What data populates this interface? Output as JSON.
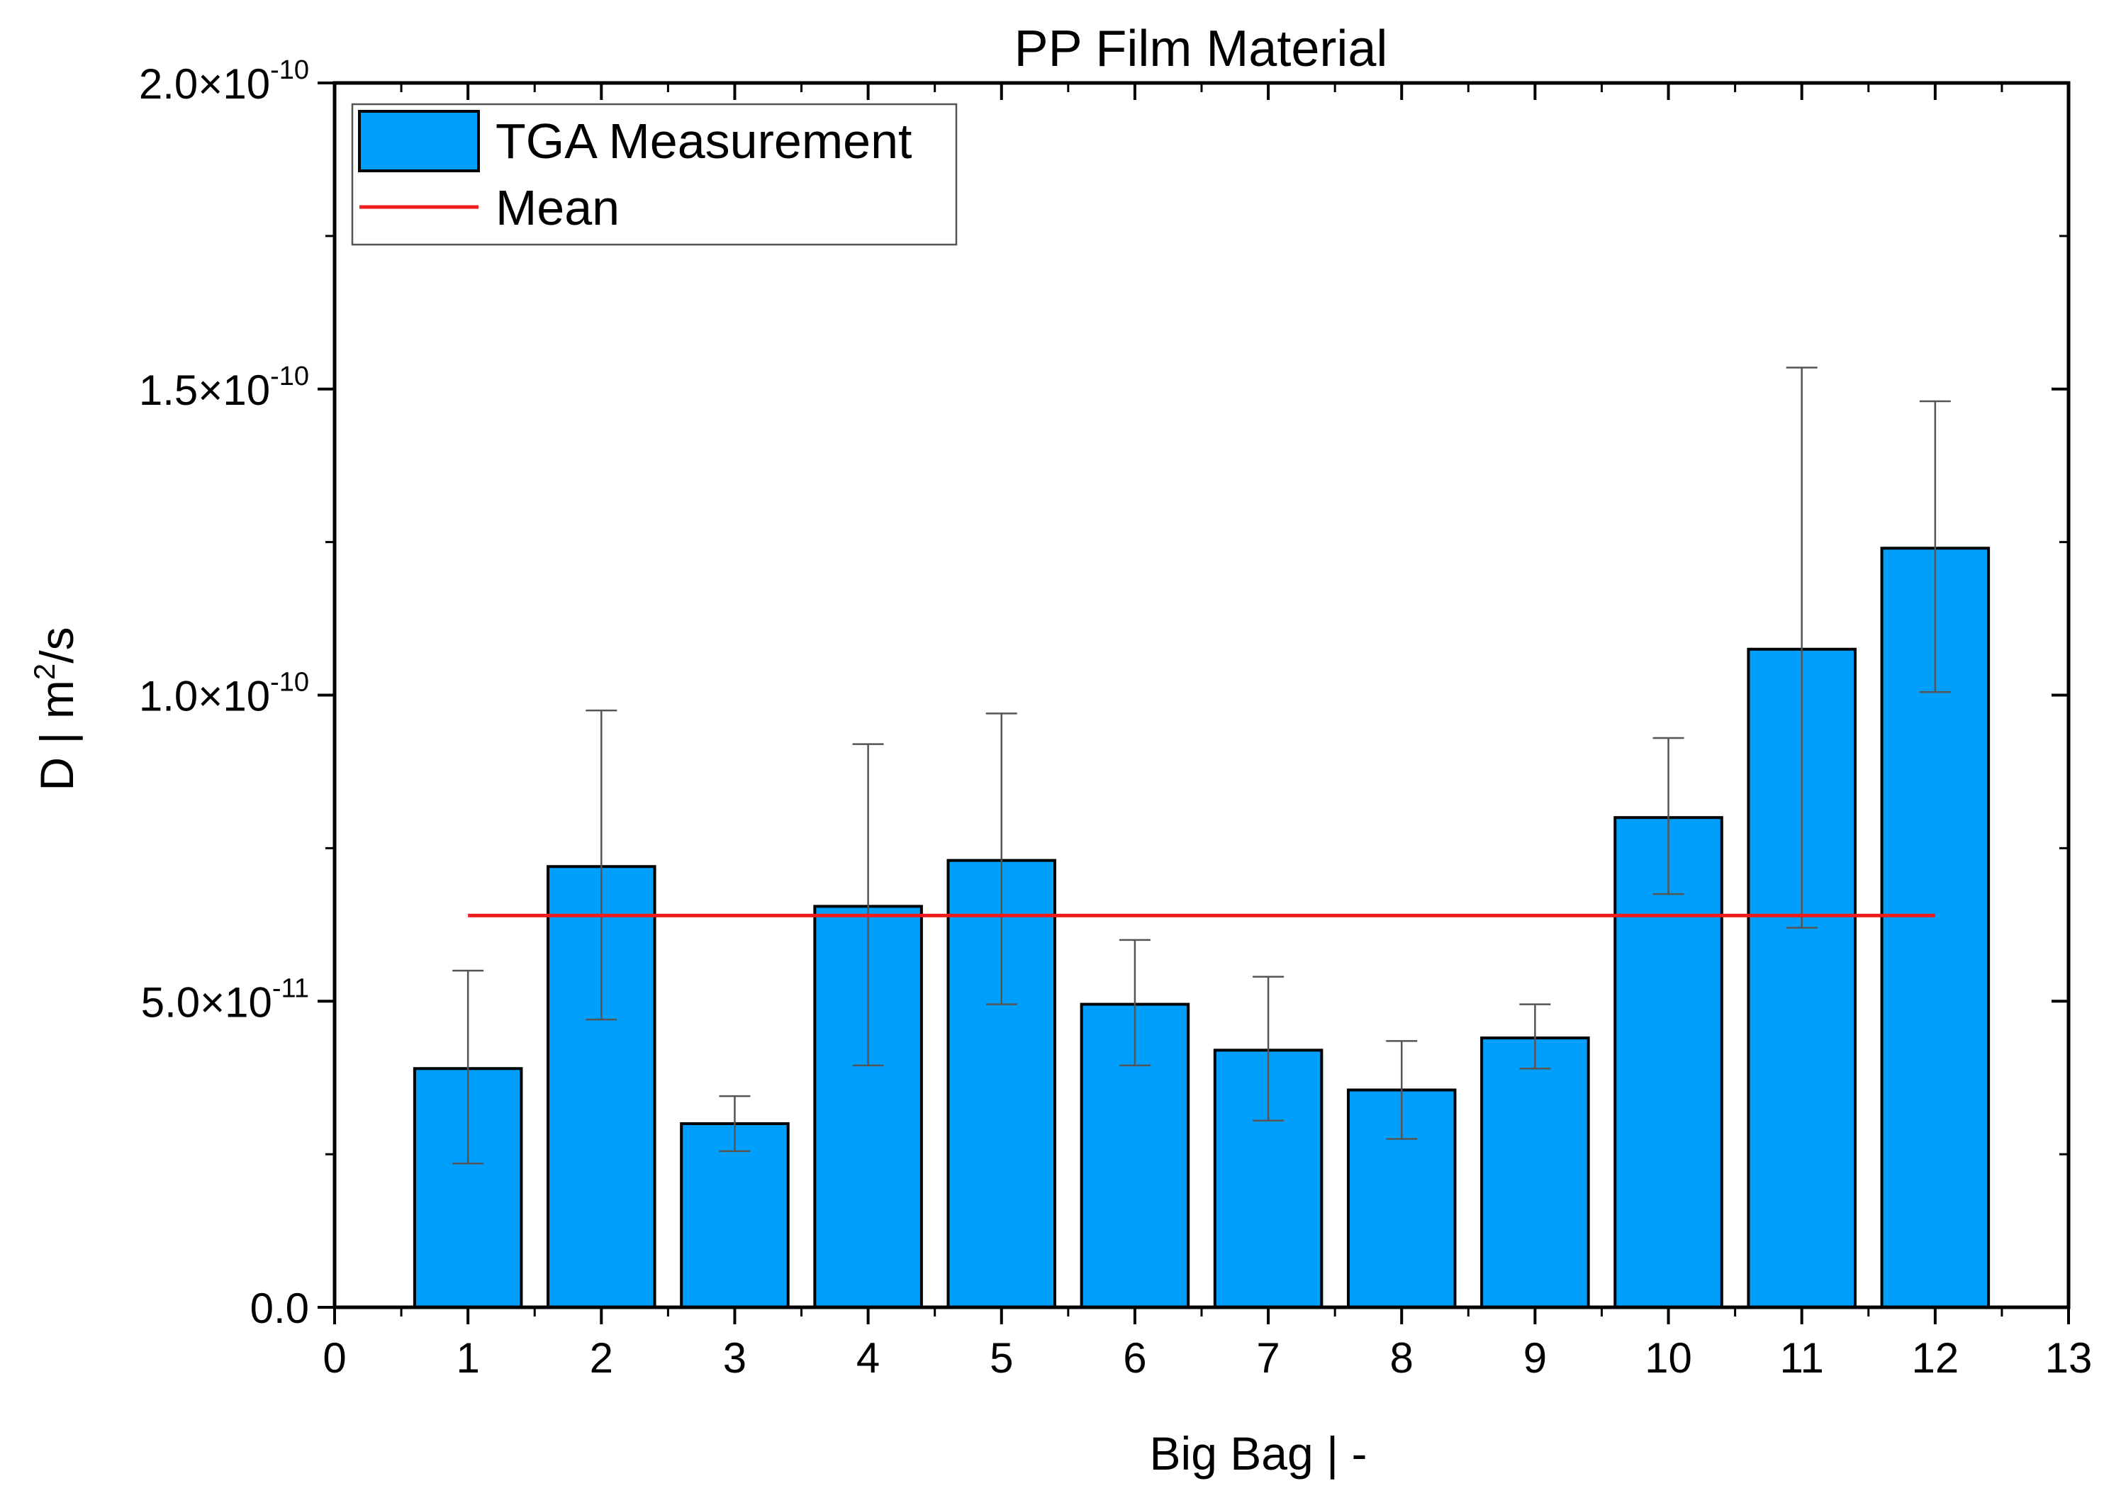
{
  "chart_data": {
    "type": "bar",
    "title": "PP Film Material",
    "xlabel": "Big Bag | -",
    "ylabel": "D | m²/s",
    "ylabel_parts": {
      "base": "D | m",
      "sup": "2",
      "tail": "/s"
    },
    "xlim": [
      0,
      13
    ],
    "ylim": [
      0,
      2e-10
    ],
    "x_ticks": [
      "0",
      "1",
      "2",
      "3",
      "4",
      "5",
      "6",
      "7",
      "8",
      "9",
      "10",
      "11",
      "12",
      "13"
    ],
    "y_ticks": [
      {
        "value": 0,
        "label": "0.0",
        "mantissa": "",
        "exponent": ""
      },
      {
        "value": 5e-11,
        "label": "5.0×10⁻¹¹",
        "mantissa": "5.0×10",
        "exponent": "-11"
      },
      {
        "value": 1e-10,
        "label": "1.0×10⁻¹⁰",
        "mantissa": "1.0×10",
        "exponent": "-10"
      },
      {
        "value": 1.5e-10,
        "label": "1.5×10⁻¹⁰",
        "mantissa": "1.5×10",
        "exponent": "-10"
      },
      {
        "value": 2e-10,
        "label": "2.0×10⁻¹⁰",
        "mantissa": "2.0×10",
        "exponent": "-10"
      }
    ],
    "series": [
      {
        "name": "TGA Measurement",
        "kind": "bar",
        "color": "#009ffb",
        "x": [
          1,
          2,
          3,
          4,
          5,
          6,
          7,
          8,
          9,
          10,
          11,
          12
        ],
        "values": [
          3.9e-11,
          7.2e-11,
          3e-11,
          6.55e-11,
          7.3e-11,
          4.95e-11,
          4.2e-11,
          3.55e-11,
          4.4e-11,
          8e-11,
          1.075e-10,
          1.24e-10
        ],
        "error_upper": [
          5.5e-11,
          9.75e-11,
          3.45e-11,
          9.2e-11,
          9.7e-11,
          6e-11,
          5.4e-11,
          4.35e-11,
          4.95e-11,
          9.3e-11,
          1.535e-10,
          1.48e-10
        ],
        "error_lower": [
          2.35e-11,
          4.7e-11,
          2.55e-11,
          3.95e-11,
          4.95e-11,
          3.95e-11,
          3.05e-11,
          2.75e-11,
          3.9e-11,
          6.75e-11,
          6.2e-11,
          1.005e-10
        ]
      },
      {
        "name": "Mean",
        "kind": "line",
        "color": "#ee1c1c",
        "x": [
          1,
          12
        ],
        "values": [
          6.4e-11,
          6.4e-11
        ]
      }
    ],
    "legend": {
      "position": "top-left",
      "entries": [
        {
          "label": "TGA Measurement",
          "symbol": "bar",
          "color": "#009ffb"
        },
        {
          "label": "Mean",
          "symbol": "line",
          "color": "#ee1c1c"
        }
      ]
    }
  }
}
